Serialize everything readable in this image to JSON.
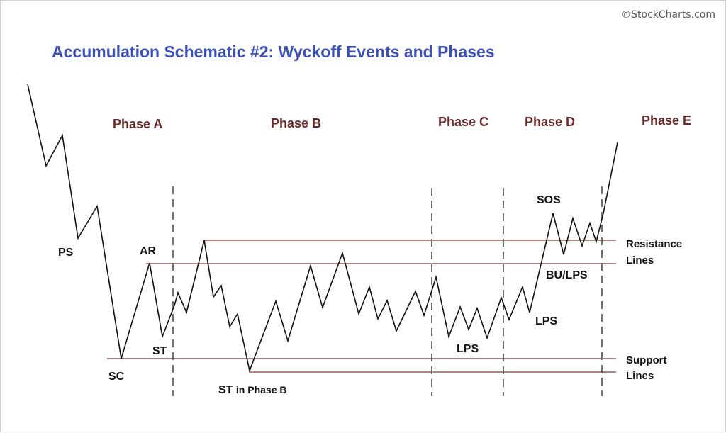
{
  "watermark": "©StockCharts.com",
  "title": "Accumulation Schematic #2: Wyckoff Events and Phases",
  "phases": {
    "a": "Phase A",
    "b": "Phase B",
    "c": "Phase C",
    "d": "Phase D",
    "e": "Phase E"
  },
  "events": {
    "ps": "PS",
    "sc": "SC",
    "ar": "AR",
    "st": "ST",
    "st_phase_b": "ST",
    "st_phase_b_suffix": "in Phase B",
    "lps_c": "LPS",
    "lps_d": "LPS",
    "sos": "SOS",
    "bu_lps": "BU/LPS"
  },
  "side_labels": {
    "resistance_1": "Resistance",
    "resistance_2": "Lines",
    "support_1": "Support",
    "support_2": "Lines"
  },
  "colors": {
    "title": "#3b4fb8",
    "phase": "#6b2a2a",
    "price_line": "#111111",
    "level_line": "#7a3a3a",
    "divider": "#444444"
  }
}
